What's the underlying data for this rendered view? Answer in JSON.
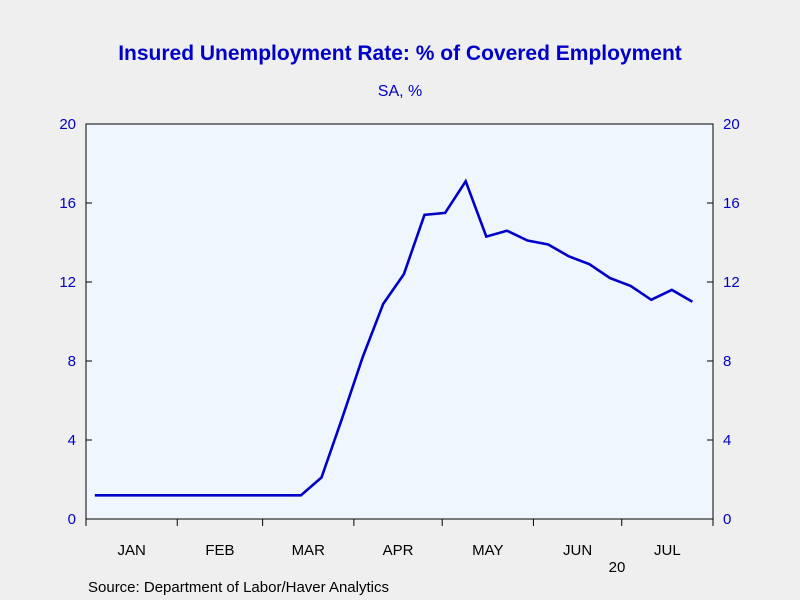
{
  "chart_data": {
    "type": "line",
    "title": "Insured Unemployment Rate: % of Covered Employment",
    "subtitle": "SA, %",
    "source": "Source:  Department of Labor/Haver Analytics",
    "year_label": "20",
    "x_months": [
      "JAN",
      "FEB",
      "MAR",
      "APR",
      "MAY",
      "JUN",
      "JUL"
    ],
    "ylim": [
      0,
      20
    ],
    "yticks": [
      0,
      4,
      8,
      12,
      16,
      20
    ],
    "grid": false,
    "line_color": "#0000c8",
    "plot_background": "#f0f6fe",
    "series": [
      {
        "x": [
          "2020-01-04",
          "2020-01-11",
          "2020-01-18",
          "2020-01-25",
          "2020-02-01",
          "2020-02-08",
          "2020-02-15",
          "2020-02-22",
          "2020-02-29",
          "2020-03-07",
          "2020-03-14",
          "2020-03-21",
          "2020-03-28",
          "2020-04-04",
          "2020-04-11",
          "2020-04-18",
          "2020-04-25",
          "2020-05-02",
          "2020-05-09",
          "2020-05-16",
          "2020-05-23",
          "2020-05-30",
          "2020-06-06",
          "2020-06-13",
          "2020-06-20",
          "2020-06-27",
          "2020-07-04",
          "2020-07-11",
          "2020-07-18",
          "2020-07-25"
        ],
        "values": [
          1.2,
          1.2,
          1.2,
          1.2,
          1.2,
          1.2,
          1.2,
          1.2,
          1.2,
          1.2,
          1.2,
          2.1,
          5.1,
          8.2,
          10.9,
          12.4,
          15.4,
          15.5,
          17.1,
          14.3,
          14.6,
          14.1,
          13.9,
          13.3,
          12.9,
          12.2,
          11.8,
          11.1,
          11.6,
          11.0
        ]
      }
    ]
  }
}
